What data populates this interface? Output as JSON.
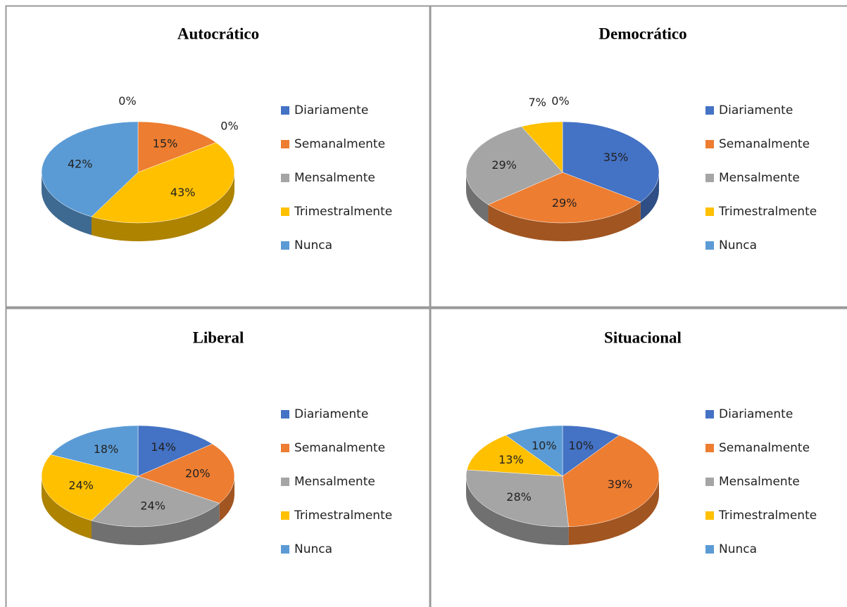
{
  "chart_data": [
    {
      "type": "pie",
      "title": "Autocrático",
      "categories": [
        "Diariamente",
        "Semanalmente",
        "Mensalmente",
        "Trimestralmente",
        "Nunca"
      ],
      "values": [
        0,
        15,
        0,
        43,
        42
      ],
      "value_labels": [
        "0%",
        "15%",
        "0%",
        "43%",
        "42%"
      ],
      "colors": [
        "#4472c4",
        "#ed7d31",
        "#a5a5a5",
        "#ffc000",
        "#5b9bd5"
      ]
    },
    {
      "type": "pie",
      "title": "Democrático",
      "categories": [
        "Diariamente",
        "Semanalmente",
        "Mensalmente",
        "Trimestralmente",
        "Nunca"
      ],
      "values": [
        35,
        29,
        29,
        7,
        0
      ],
      "value_labels": [
        "35%",
        "29%",
        "29%",
        "7%",
        "0%"
      ],
      "colors": [
        "#4472c4",
        "#ed7d31",
        "#a5a5a5",
        "#ffc000",
        "#5b9bd5"
      ]
    },
    {
      "type": "pie",
      "title": "Liberal",
      "categories": [
        "Diariamente",
        "Semanalmente",
        "Mensalmente",
        "Trimestralmente",
        "Nunca"
      ],
      "values": [
        14,
        20,
        24,
        24,
        18
      ],
      "value_labels": [
        "14%",
        "20%",
        "24%",
        "24%",
        "18%"
      ],
      "colors": [
        "#4472c4",
        "#ed7d31",
        "#a5a5a5",
        "#ffc000",
        "#5b9bd5"
      ]
    },
    {
      "type": "pie",
      "title": "Situacional",
      "categories": [
        "Diariamente",
        "Semanalmente",
        "Mensalmente",
        "Trimestralmente",
        "Nunca"
      ],
      "values": [
        10,
        39,
        28,
        13,
        10
      ],
      "value_labels": [
        "10%",
        "39%",
        "28%",
        "13%",
        "10%"
      ],
      "colors": [
        "#4472c4",
        "#ed7d31",
        "#a5a5a5",
        "#ffc000",
        "#5b9bd5"
      ]
    }
  ]
}
